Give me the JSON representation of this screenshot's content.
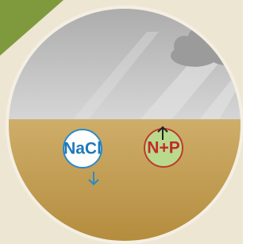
{
  "nodes": [
    {
      "label": "NaCl"
    },
    {
      "label": "N+P"
    }
  ]
}
